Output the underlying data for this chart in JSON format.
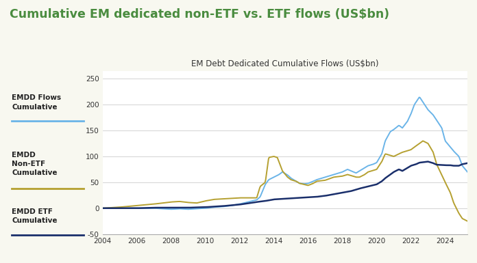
{
  "title_main": "Cumulative EM dedicated non-ETF vs. ETF flows (US$bn)",
  "title_sub": "EM Debt Dedicated Cumulative Flows (US$bn)",
  "title_main_color": "#4a8c3f",
  "background_color": "#f8f8f0",
  "chart_bg": "#ffffff",
  "border_color": "#7aaa5a",
  "ylim": [
    -50,
    265
  ],
  "yticks": [
    -50,
    0,
    50,
    100,
    150,
    200,
    250
  ],
  "legend_labels": [
    "EMDD Flows\nCumulative",
    "EMDD\nNon-ETF\nCumulative",
    "EMDD ETF\nCumulative"
  ],
  "line_colors": [
    "#6ab4e8",
    "#b5a030",
    "#1a2f6b"
  ],
  "x_ticks": [
    2004,
    2006,
    2008,
    2010,
    2012,
    2014,
    2016,
    2018,
    2020,
    2022,
    2024
  ]
}
